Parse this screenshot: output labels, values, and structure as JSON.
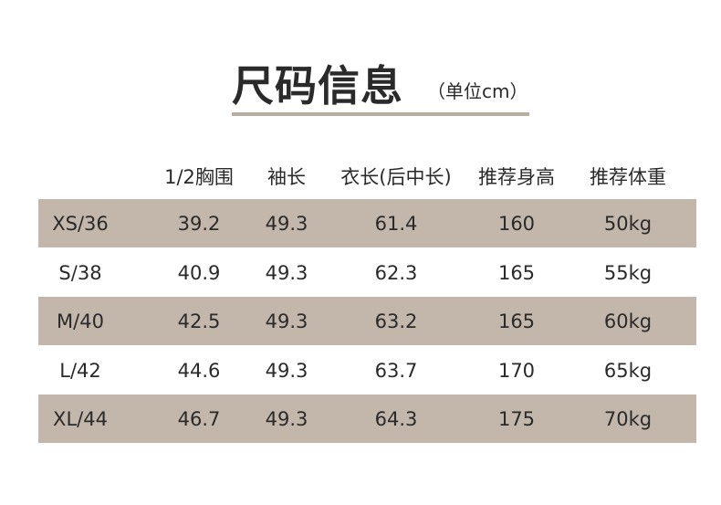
{
  "header": {
    "title": "尺码信息",
    "subtitle": "（单位cm）"
  },
  "table": {
    "columns": [
      "1/2胸围",
      "袖长",
      "衣长(后中长)",
      "推荐身高",
      "推荐体重"
    ],
    "rows": [
      [
        "XS/36",
        "39.2",
        "49.3",
        "61.4",
        "160",
        "50kg"
      ],
      [
        "S/38",
        "40.9",
        "49.3",
        "62.3",
        "165",
        "55kg"
      ],
      [
        "M/40",
        "42.5",
        "49.3",
        "63.2",
        "165",
        "60kg"
      ],
      [
        "L/42",
        "44.6",
        "49.3",
        "63.7",
        "170",
        "65kg"
      ],
      [
        "XL/44",
        "46.7",
        "49.3",
        "64.3",
        "175",
        "70kg"
      ]
    ]
  }
}
